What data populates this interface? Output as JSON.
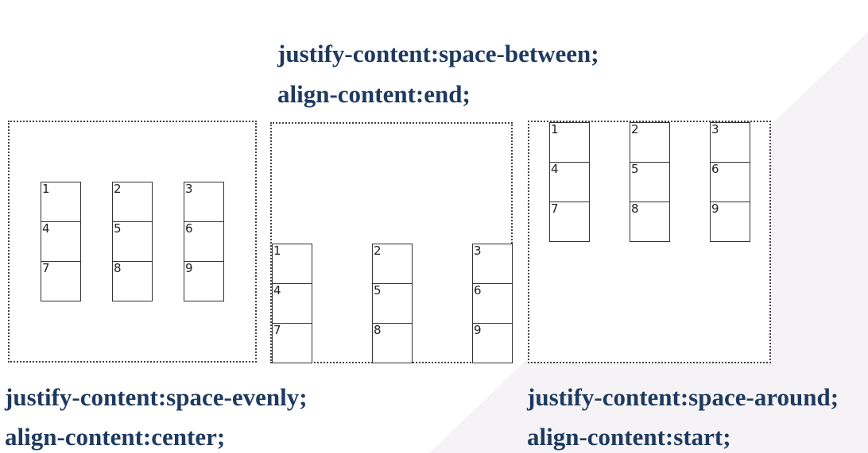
{
  "captions": {
    "middle": {
      "line1": "justify-content:space-between;",
      "line2": "align-content:end;"
    },
    "left": {
      "line1": "justify-content:space-evenly;",
      "line2": "align-content:center;"
    },
    "right": {
      "line1": "justify-content:space-around;",
      "line2": "align-content:start;"
    }
  },
  "item_labels": [
    "1",
    "2",
    "3",
    "4",
    "5",
    "6",
    "7",
    "8",
    "9"
  ],
  "colors": {
    "caption": "#1f3a5f",
    "border": "#444444",
    "diagonal_band": "#f4f2f4"
  }
}
